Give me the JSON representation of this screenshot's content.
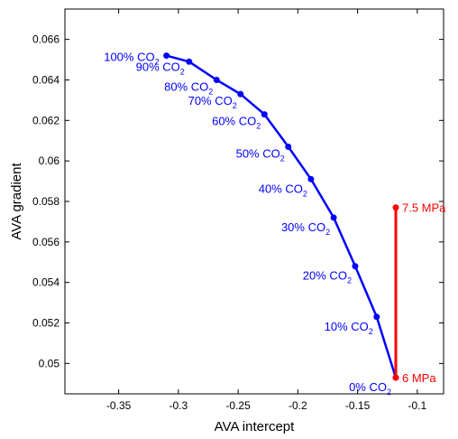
{
  "chart_data": {
    "type": "line",
    "title": "",
    "xlabel": "AVA intercept",
    "ylabel": "AVA gradient",
    "xlim": [
      -0.395,
      -0.078
    ],
    "ylim": [
      0.0485,
      0.0675
    ],
    "xticks": [
      -0.35,
      -0.3,
      -0.25,
      -0.2,
      -0.15,
      -0.1
    ],
    "xtick_labels": [
      "-0.35",
      "-0.3",
      "-0.25",
      "-0.2",
      "-0.15",
      "-0.1"
    ],
    "yticks": [
      0.05,
      0.052,
      0.054,
      0.056,
      0.058,
      0.06,
      0.062,
      0.064,
      0.066
    ],
    "ytick_labels": [
      "0.05",
      "0.052",
      "0.054",
      "0.056",
      "0.058",
      "0.06",
      "0.062",
      "0.064",
      "0.066"
    ],
    "grid": false,
    "colors": {
      "co2_series": "#0000ff",
      "pressure_series": "#ff0000",
      "axes": "#000000"
    },
    "series": [
      {
        "color": "#0000ff",
        "marker": "circle",
        "x": [
          -0.118,
          -0.134,
          -0.152,
          -0.17,
          -0.189,
          -0.208,
          -0.228,
          -0.248,
          -0.268,
          -0.291,
          -0.31
        ],
        "y": [
          0.0493,
          0.0523,
          0.0548,
          0.0572,
          0.0591,
          0.0607,
          0.0623,
          0.0633,
          0.064,
          0.0649,
          0.0652
        ],
        "labels": [
          "0% CO",
          "10% CO",
          "20% CO",
          "30% CO",
          "40% CO",
          "50% CO",
          "60% CO",
          "70% CO",
          "80% CO",
          "90% CO",
          "100% CO"
        ],
        "label_subscript": "2"
      },
      {
        "color": "#ff0000",
        "marker": "circle",
        "x": [
          -0.118,
          -0.118
        ],
        "y": [
          0.0493,
          0.0577
        ],
        "labels": [
          "6 MPa",
          "7.5 MPa"
        ]
      }
    ]
  }
}
